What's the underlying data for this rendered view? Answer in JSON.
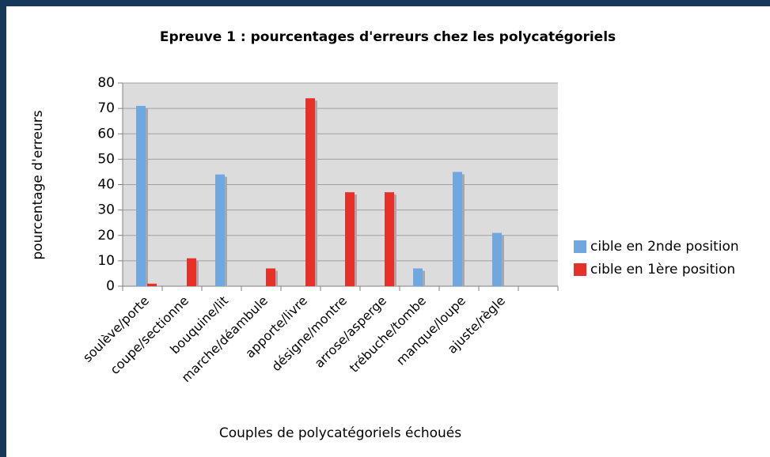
{
  "chart_data": {
    "type": "bar",
    "title": "Epreuve 1 : pourcentages d'erreurs chez les polycatégoriels",
    "x_label": "Couples de polycatégoriels échoués",
    "y_label": "pourcentage d'erreurs",
    "categories": [
      "soulève/porte",
      "coupe/sectionne",
      "bouquine/lit",
      "marche/déambule",
      "apporte/livre",
      "désigne/montre",
      "arrose/asperge",
      "trébuche/tombe",
      "manque/loupe",
      "ajuste/règle",
      null
    ],
    "series": [
      {
        "name": "cible en 2nde position",
        "color": "#6fa8e0",
        "values": [
          71,
          0,
          44,
          0,
          0,
          0,
          0,
          7,
          45,
          21,
          null
        ]
      },
      {
        "name": "cible en 1ère position",
        "color": "#e8302a",
        "values": [
          1,
          11,
          0,
          7,
          74,
          37,
          37,
          0,
          0,
          0,
          null
        ]
      }
    ],
    "ylim": [
      0,
      80
    ],
    "yticks": [
      0,
      10,
      20,
      30,
      40,
      50,
      60,
      70,
      80
    ],
    "grid": true,
    "legend": "right"
  }
}
